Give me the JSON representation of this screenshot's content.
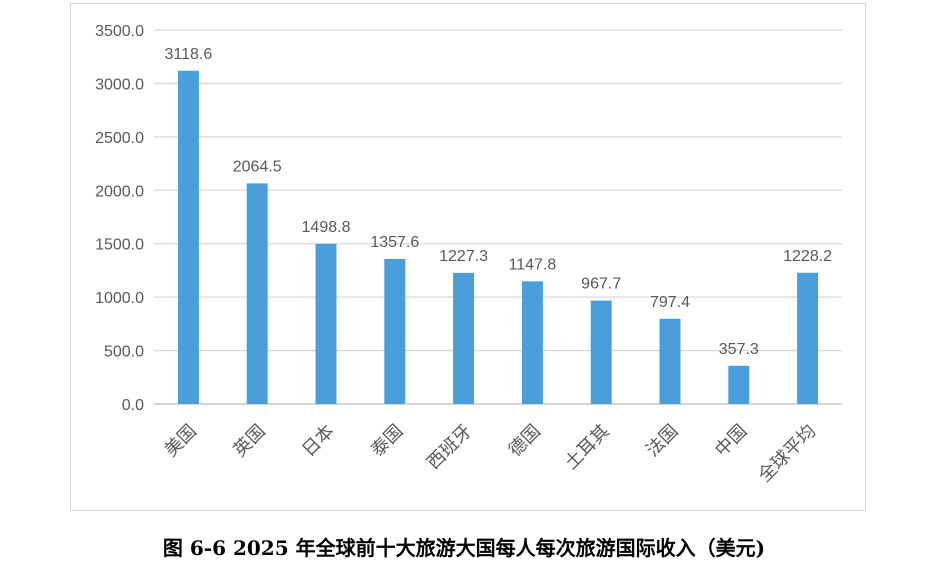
{
  "caption": "图 6-6   2025 年全球前十大旅游大国每人每次旅游国际收入（美元)",
  "chart_data": {
    "type": "bar",
    "title": "",
    "xlabel": "",
    "ylabel": "",
    "categories": [
      "美国",
      "英国",
      "日本",
      "泰国",
      "西班牙",
      "德国",
      "土耳其",
      "法国",
      "中国",
      "全球平均"
    ],
    "values": [
      3118.6,
      2064.5,
      1498.8,
      1357.6,
      1227.3,
      1147.8,
      967.7,
      797.4,
      357.3,
      1228.2
    ],
    "data_labels": [
      "3118.6",
      "2064.5",
      "1498.8",
      "1357.6",
      "1227.3",
      "1147.8",
      "967.7",
      "797.4",
      "357.3",
      "1228.2"
    ],
    "ylim": [
      0,
      3500
    ],
    "yticks": [
      "0.0",
      "500.0",
      "1000.0",
      "1500.0",
      "2000.0",
      "2500.0",
      "3000.0",
      "3500.0"
    ],
    "grid": true,
    "legend": "none",
    "bar_color": "#4a9fdb"
  }
}
